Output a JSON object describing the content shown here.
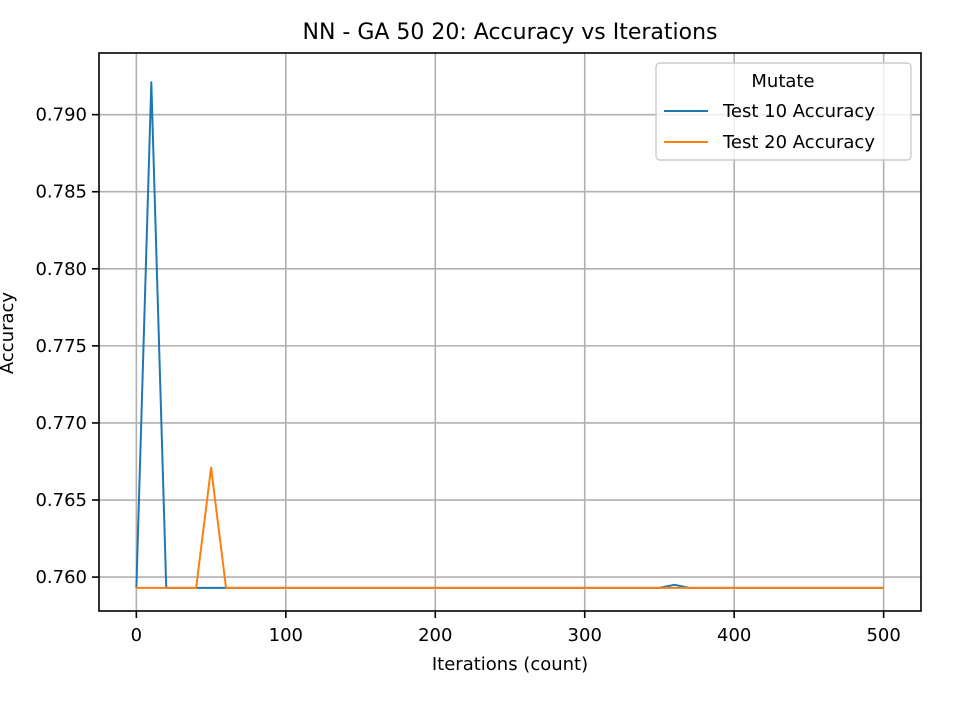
{
  "chart_data": {
    "type": "line",
    "title": "NN - GA 50 20: Accuracy vs Iterations",
    "xlabel": "Iterations (count)",
    "ylabel": "Accuracy",
    "xlim": [
      -25,
      525
    ],
    "ylim": [
      0.7578,
      0.794
    ],
    "xticks": [
      0,
      100,
      200,
      300,
      400,
      500
    ],
    "xtick_labels": [
      "0",
      "100",
      "200",
      "300",
      "400",
      "500"
    ],
    "yticks": [
      0.76,
      0.765,
      0.77,
      0.775,
      0.78,
      0.785,
      0.79
    ],
    "ytick_labels": [
      "0.760",
      "0.765",
      "0.770",
      "0.775",
      "0.780",
      "0.785",
      "0.790"
    ],
    "grid": true,
    "legend": {
      "title": "Mutate",
      "placement": "top-right"
    },
    "series": [
      {
        "name": "Test 10 Accuracy",
        "color": "#1f77b4",
        "x": [
          0,
          10,
          20,
          30,
          40,
          50,
          60,
          70,
          80,
          90,
          100,
          150,
          200,
          250,
          300,
          350,
          360,
          370,
          380,
          400,
          450,
          500
        ],
        "y": [
          0.7593,
          0.7921,
          0.7593,
          0.7593,
          0.7593,
          0.7593,
          0.7593,
          0.7593,
          0.7593,
          0.7593,
          0.7593,
          0.7593,
          0.7593,
          0.7593,
          0.7593,
          0.7593,
          0.7595,
          0.7593,
          0.7593,
          0.7593,
          0.7593,
          0.7593
        ]
      },
      {
        "name": "Test 20 Accuracy",
        "color": "#ff7f0e",
        "x": [
          0,
          10,
          20,
          30,
          40,
          50,
          60,
          70,
          80,
          90,
          100,
          150,
          200,
          250,
          300,
          350,
          400,
          450,
          500
        ],
        "y": [
          0.7593,
          0.7593,
          0.7593,
          0.7593,
          0.7593,
          0.7671,
          0.7593,
          0.7593,
          0.7593,
          0.7593,
          0.7593,
          0.7593,
          0.7593,
          0.7593,
          0.7593,
          0.7593,
          0.7593,
          0.7593,
          0.7593
        ]
      }
    ]
  }
}
